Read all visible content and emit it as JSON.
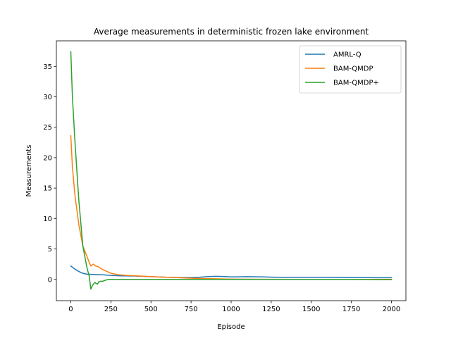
{
  "chart_data": {
    "type": "line",
    "title": "Average measurements in deterministic frozen lake environment",
    "xlabel": "Episode",
    "ylabel": "Measurements",
    "xlim": [
      -90,
      2090
    ],
    "ylim": [
      -3.5,
      39.2
    ],
    "xticks": [
      0,
      250,
      500,
      750,
      1000,
      1250,
      1500,
      1750,
      2000
    ],
    "yticks": [
      0,
      5,
      10,
      15,
      20,
      25,
      30,
      35
    ],
    "grid": false,
    "legend_position": "upper right",
    "series": [
      {
        "name": "AMRL-Q",
        "color": "#1f77b4",
        "x": [
          0,
          25,
          50,
          75,
          100,
          150,
          200,
          250,
          300,
          400,
          500,
          600,
          700,
          750,
          800,
          850,
          900,
          950,
          1000,
          1050,
          1100,
          1200,
          1300,
          1400,
          1500,
          1600,
          1700,
          1800,
          1900,
          2000
        ],
        "y": [
          2.2,
          1.7,
          1.3,
          1.0,
          0.85,
          0.8,
          0.75,
          0.65,
          0.6,
          0.55,
          0.45,
          0.35,
          0.3,
          0.3,
          0.35,
          0.45,
          0.5,
          0.48,
          0.4,
          0.42,
          0.45,
          0.4,
          0.35,
          0.35,
          0.35,
          0.33,
          0.3,
          0.3,
          0.28,
          0.27
        ]
      },
      {
        "name": "BAM-QMDP",
        "color": "#ff7f0e",
        "x": [
          0,
          10,
          25,
          50,
          75,
          100,
          115,
          125,
          140,
          155,
          170,
          200,
          250,
          300,
          350,
          400,
          500,
          600,
          700,
          800,
          900,
          1000,
          1200,
          1400,
          1600,
          1800,
          2000
        ],
        "y": [
          23.6,
          18.5,
          14.0,
          9.0,
          5.5,
          3.8,
          2.8,
          2.2,
          2.5,
          2.2,
          2.1,
          1.6,
          1.0,
          0.75,
          0.65,
          0.6,
          0.45,
          0.35,
          0.25,
          0.15,
          0.1,
          0.05,
          0.02,
          0.0,
          0.0,
          0.0,
          0.0
        ]
      },
      {
        "name": "BAM-QMDP+",
        "color": "#2ca02c",
        "x": [
          0,
          10,
          25,
          50,
          75,
          100,
          115,
          125,
          135,
          150,
          165,
          175,
          185,
          200,
          220,
          240,
          260,
          300,
          400,
          500,
          750,
          1000,
          1250,
          1500,
          1750,
          2000
        ],
        "y": [
          37.4,
          30.0,
          23.0,
          13.0,
          5.5,
          2.0,
          0.5,
          -1.6,
          -1.0,
          -0.5,
          -0.8,
          -0.4,
          -0.3,
          -0.3,
          -0.1,
          0.0,
          0.0,
          0.0,
          0.0,
          0.0,
          0.0,
          0.0,
          0.0,
          0.0,
          0.0,
          -0.05
        ]
      }
    ]
  }
}
